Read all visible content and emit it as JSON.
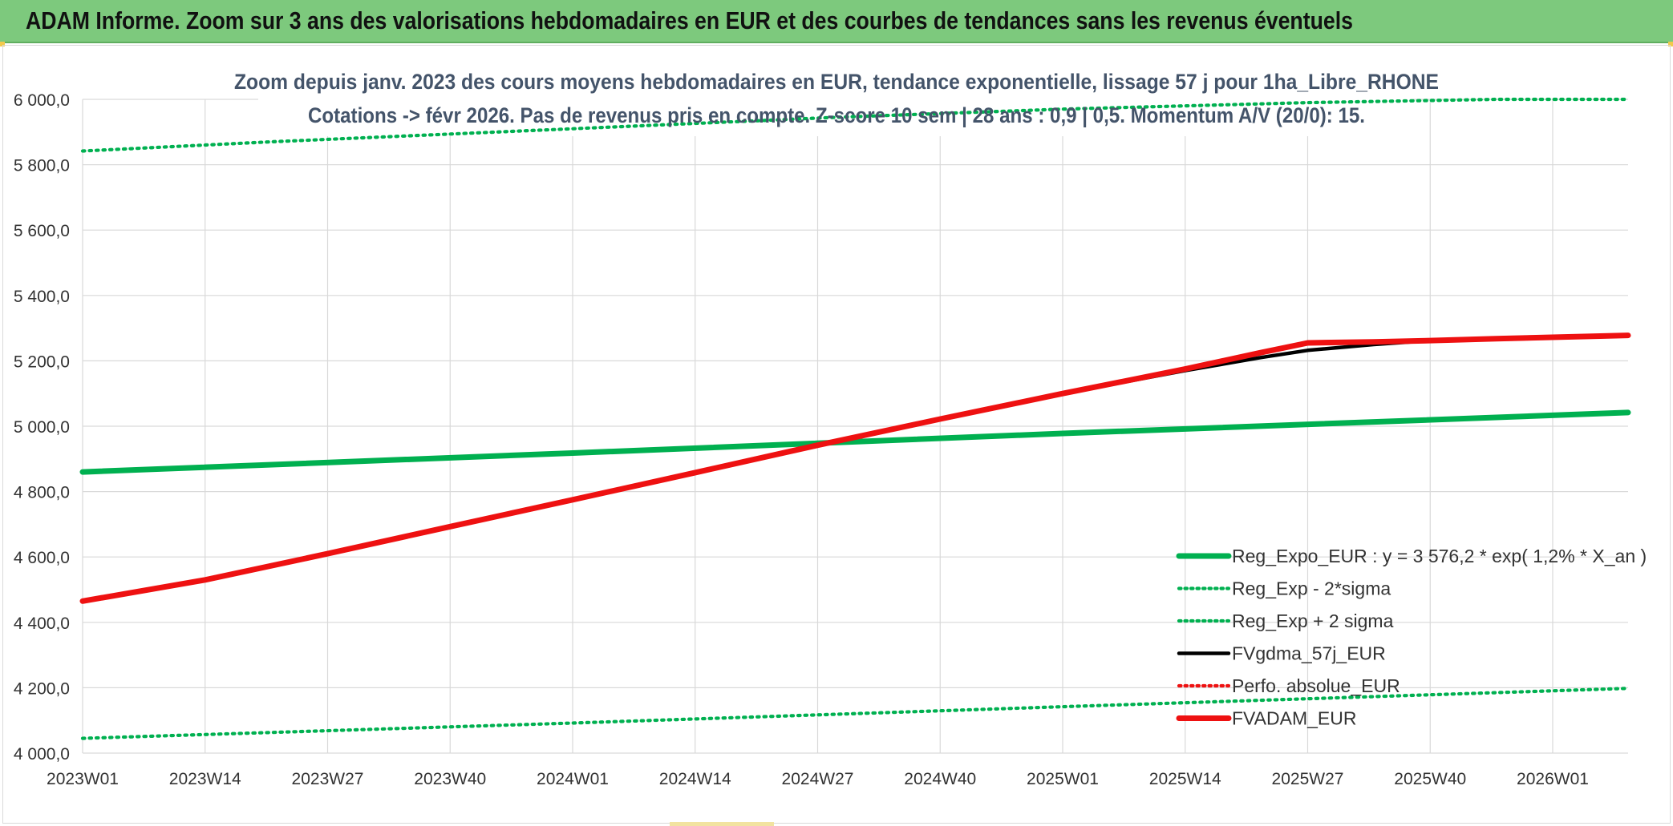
{
  "banner": {
    "title": "ADAM Informe. Zoom sur 3 ans des valorisations hebdomadaires en EUR et des courbes de tendances sans les revenus éventuels"
  },
  "colors": {
    "banner_bg": "#7dc97d",
    "green": "#00b050",
    "red": "#ee1111",
    "black": "#000000",
    "grid": "#d9d9d9"
  },
  "chart_data": {
    "type": "line",
    "title_line1": "Zoom depuis janv. 2023 des cours moyens hebdomadaires en EUR, tendance exponentielle, lissage 57 j pour 1ha_Libre_RHONE",
    "title_line2": "Cotations -> févr 2026. Pas de revenus pris en compte. Z-score 10 sem | 28 ans : 0,9 | 0,5. Momentum A/V (20/0): 15.",
    "xlabel": "",
    "ylabel": "",
    "ylim": [
      4000,
      6000
    ],
    "y_ticks": [
      4000,
      4200,
      4400,
      4600,
      4800,
      5000,
      5200,
      5400,
      5600,
      5800,
      6000
    ],
    "y_tick_labels": [
      "4 000,0",
      "4 200,0",
      "4 400,0",
      "4 600,0",
      "4 800,0",
      "5 000,0",
      "5 200,0",
      "5 400,0",
      "5 600,0",
      "5 800,0",
      "6 000,0"
    ],
    "x_range_weeks": [
      0,
      164
    ],
    "x_ticks": [
      {
        "week": 0,
        "label": "2023W01"
      },
      {
        "week": 13,
        "label": "2023W14"
      },
      {
        "week": 26,
        "label": "2023W27"
      },
      {
        "week": 39,
        "label": "2023W40"
      },
      {
        "week": 52,
        "label": "2024W01"
      },
      {
        "week": 65,
        "label": "2024W14"
      },
      {
        "week": 78,
        "label": "2024W27"
      },
      {
        "week": 91,
        "label": "2024W40"
      },
      {
        "week": 104,
        "label": "2025W01"
      },
      {
        "week": 117,
        "label": "2025W14"
      },
      {
        "week": 130,
        "label": "2025W27"
      },
      {
        "week": 143,
        "label": "2025W40"
      },
      {
        "week": 156,
        "label": "2026W01"
      }
    ],
    "grid": true,
    "legend_position": "bottom-right",
    "series": [
      {
        "name": "Reg_Expo_EUR : y = 3 576,2 * exp( 1,2% *  X_an )",
        "style": "solid-thick",
        "color": "#00b050",
        "points": [
          [
            0,
            4860
          ],
          [
            52,
            4918
          ],
          [
            104,
            4978
          ],
          [
            164,
            5042
          ]
        ]
      },
      {
        "name": "Reg_Exp - 2*sigma",
        "style": "dotted",
        "color": "#00b050",
        "points": [
          [
            0,
            4045
          ],
          [
            52,
            4092
          ],
          [
            104,
            4142
          ],
          [
            164,
            4198
          ]
        ]
      },
      {
        "name": "Reg_Exp + 2 sigma",
        "style": "dotted",
        "color": "#00b050",
        "points": [
          [
            0,
            5842
          ],
          [
            20,
            5870
          ],
          [
            40,
            5895
          ],
          [
            52,
            5910
          ],
          [
            80,
            5945
          ],
          [
            104,
            5970
          ],
          [
            130,
            5990
          ],
          [
            150,
            6000
          ],
          [
            164,
            6000
          ]
        ]
      },
      {
        "name": "FVgdma_57j_EUR",
        "style": "solid",
        "color": "#000000",
        "points": [
          [
            0,
            4465
          ],
          [
            13,
            4530
          ],
          [
            26,
            4610
          ],
          [
            39,
            4693
          ],
          [
            52,
            4775
          ],
          [
            65,
            4858
          ],
          [
            78,
            4942
          ],
          [
            91,
            5022
          ],
          [
            104,
            5100
          ],
          [
            117,
            5170
          ],
          [
            125,
            5210
          ],
          [
            130,
            5232
          ],
          [
            137,
            5250
          ],
          [
            143,
            5262
          ],
          [
            150,
            5268
          ],
          [
            164,
            5278
          ]
        ]
      },
      {
        "name": "Perfo. absolue_EUR",
        "style": "dotted",
        "color": "#ee1111",
        "points": []
      },
      {
        "name": "FVADAM_EUR",
        "style": "solid-thick",
        "color": "#ee1111",
        "points": [
          [
            0,
            4465
          ],
          [
            13,
            4530
          ],
          [
            26,
            4610
          ],
          [
            39,
            4693
          ],
          [
            52,
            4775
          ],
          [
            65,
            4858
          ],
          [
            78,
            4942
          ],
          [
            91,
            5022
          ],
          [
            104,
            5100
          ],
          [
            117,
            5175
          ],
          [
            125,
            5225
          ],
          [
            130,
            5255
          ],
          [
            137,
            5258
          ],
          [
            143,
            5262
          ],
          [
            150,
            5268
          ],
          [
            164,
            5278
          ]
        ]
      }
    ]
  }
}
